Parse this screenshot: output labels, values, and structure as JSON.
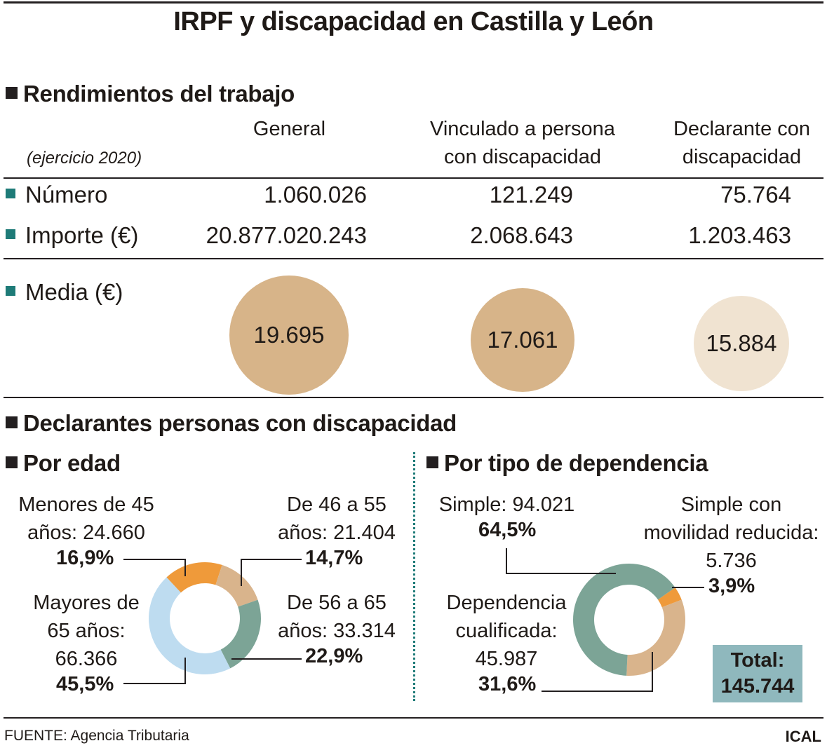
{
  "title": "IRPF y discapacidad en Castilla y León",
  "section1": {
    "heading": "Rendimientos del trabajo",
    "note": "(ejercicio 2020)",
    "columns": [
      "General",
      "Vinculado a persona\ncon discapacidad",
      "Declarante con\ndiscapacidad"
    ],
    "rows": [
      {
        "label": "Número",
        "values": [
          "1.060.026",
          "121.249",
          "75.764"
        ]
      },
      {
        "label": "Importe (€)",
        "values": [
          "20.877.020.243",
          "2.068.643",
          "1.203.463"
        ]
      }
    ],
    "media_label": "Media (€)"
  },
  "section2": {
    "heading": "Declarantes personas con discapacidad",
    "age_heading": "Por edad",
    "type_heading": "Por tipo de dependencia",
    "total_label": "Total:",
    "total_value": "145.744"
  },
  "chart_data": [
    {
      "type": "bubble",
      "title": "Media (€)",
      "categories": [
        "General",
        "Vinculado a persona con discapacidad",
        "Declarante con discapacidad"
      ],
      "values": [
        19695,
        17061,
        15884
      ],
      "value_labels": [
        "19.695",
        "17.061",
        "15.884"
      ],
      "colors": [
        "#d7b489",
        "#d7b489",
        "#f0e3d1"
      ]
    },
    {
      "type": "pie",
      "title": "Por edad",
      "slices": [
        {
          "name_lines": [
            "Menores de 45",
            "años: 24.660"
          ],
          "value": 24660,
          "pct": "16,9%",
          "color": "#ef9a3a"
        },
        {
          "name_lines": [
            "De 46 a 55",
            "años: 21.404"
          ],
          "value": 21404,
          "pct": "14,7%",
          "color": "#d9b48c"
        },
        {
          "name_lines": [
            "De 56 a 65",
            "años: 33.314"
          ],
          "value": 33314,
          "pct": "22,9%",
          "color": "#7ca496"
        },
        {
          "name_lines": [
            "Mayores de",
            "65 años:",
            "66.366"
          ],
          "value": 66366,
          "pct": "45,5%",
          "color": "#bedcf0"
        }
      ]
    },
    {
      "type": "pie",
      "title": "Por tipo de dependencia",
      "slices": [
        {
          "name_lines": [
            "Simple con",
            "movilidad reducida:",
            "5.736"
          ],
          "value": 5736,
          "pct": "3,9%",
          "color": "#ef9a3a"
        },
        {
          "name_lines": [
            "Dependencia",
            "cualificada:",
            "45.987"
          ],
          "value": 45987,
          "pct": "31,6%",
          "color": "#d9b48c"
        },
        {
          "name_lines": [
            "Simple: 94.021"
          ],
          "value": 94021,
          "pct": "64,5%",
          "color": "#7ca496"
        }
      ]
    }
  ],
  "source": "FUENTE: Agencia Tributaria",
  "brand": "ICAL"
}
